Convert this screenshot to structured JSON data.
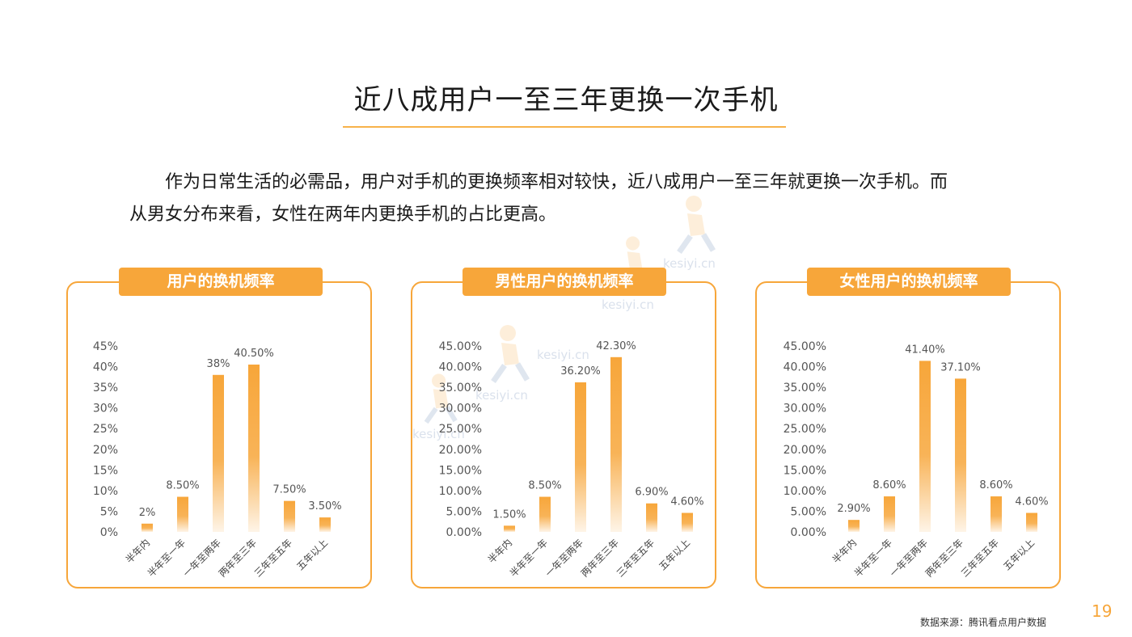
{
  "page": {
    "title": "近八成用户一至三年更换一次手机",
    "intro_line1": "作为日常生活的必需品，用户对手机的更换频率相对较快，近八成用户一至三年就更换一次手机。而",
    "intro_line2": "从男女分布来看，女性在两年内更换手机的占比更高。",
    "source": "数据来源：腾讯看点用户数据",
    "page_number": "19",
    "watermark_text": "kesiyi.cn",
    "accent_color": "#f7a63a"
  },
  "chart_data": [
    {
      "type": "bar",
      "title": "用户的换机频率",
      "categories": [
        "半年内",
        "半年至一年",
        "一年至两年",
        "两年至三年",
        "三年至五年",
        "五年以上"
      ],
      "values": [
        2,
        8.5,
        38,
        40.5,
        7.5,
        3.5
      ],
      "value_labels": [
        "2%",
        "8.50%",
        "38%",
        "40.50%",
        "7.50%",
        "3.50%"
      ],
      "ylim": [
        0,
        45
      ],
      "yticks": [
        "0%",
        "5%",
        "10%",
        "15%",
        "20%",
        "25%",
        "30%",
        "35%",
        "40%",
        "45%"
      ],
      "grid": false
    },
    {
      "type": "bar",
      "title": "男性用户的换机频率",
      "categories": [
        "半年内",
        "半年至一年",
        "一年至两年",
        "两年至三年",
        "三年至五年",
        "五年以上"
      ],
      "values": [
        1.5,
        8.5,
        36.2,
        42.3,
        6.9,
        4.6
      ],
      "value_labels": [
        "1.50%",
        "8.50%",
        "36.20%",
        "42.30%",
        "6.90%",
        "4.60%"
      ],
      "ylim": [
        0,
        45
      ],
      "yticks": [
        "0.00%",
        "5.00%",
        "10.00%",
        "15.00%",
        "20.00%",
        "25.00%",
        "30.00%",
        "35.00%",
        "40.00%",
        "45.00%"
      ],
      "grid": false
    },
    {
      "type": "bar",
      "title": "女性用户的换机频率",
      "categories": [
        "半年内",
        "半年至一年",
        "一年至两年",
        "两年至三年",
        "三年至五年",
        "五年以上"
      ],
      "values": [
        2.9,
        8.6,
        41.4,
        37.1,
        8.6,
        4.6
      ],
      "value_labels": [
        "2.90%",
        "8.60%",
        "41.40%",
        "37.10%",
        "8.60%",
        "4.60%"
      ],
      "ylim": [
        0,
        45
      ],
      "yticks": [
        "0.00%",
        "5.00%",
        "10.00%",
        "15.00%",
        "20.00%",
        "25.00%",
        "30.00%",
        "35.00%",
        "40.00%",
        "45.00%"
      ],
      "grid": false
    }
  ]
}
